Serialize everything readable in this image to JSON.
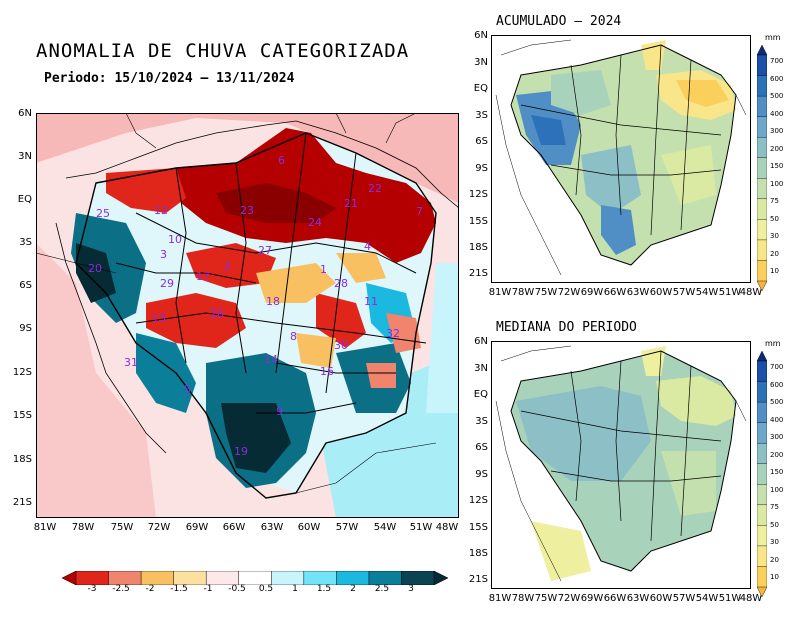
{
  "main_map": {
    "title": "ANOMALIA DE CHUVA CATEGORIZADA",
    "period": "Periodo: 15/10/2024 – 13/11/2024",
    "lat_labels": [
      "6N",
      "3N",
      "EQ",
      "3S",
      "6S",
      "9S",
      "12S",
      "15S",
      "18S",
      "21S"
    ],
    "lon_labels": [
      "81W",
      "78W",
      "75W",
      "72W",
      "69W",
      "66W",
      "63W",
      "60W",
      "57W",
      "54W",
      "51W",
      "48W"
    ],
    "basin_numbers": [
      "6",
      "23",
      "22",
      "21",
      "25",
      "24",
      "7",
      "12",
      "10",
      "4",
      "27",
      "20",
      "3",
      "17",
      "2",
      "1",
      "28",
      "11",
      "18",
      "29",
      "26",
      "8",
      "13",
      "31",
      "30",
      "32",
      "14",
      "16",
      "5",
      "9",
      "19"
    ],
    "colorbar": {
      "ticks": [
        "-3",
        "-2.5",
        "-2",
        "-1.5",
        "-1",
        "-0.5",
        "0.5",
        "1",
        "1.5",
        "2",
        "2.5",
        "3"
      ],
      "colors": [
        "#b50000",
        "#e0261a",
        "#f0846c",
        "#f8c060",
        "#fbe0a0",
        "#fde8ea",
        "#ffffff",
        "#c8f4fc",
        "#72e4f7",
        "#1bb8e0",
        "#0b7f9a",
        "#0a4452",
        "#062b34"
      ]
    }
  },
  "acumulado_map": {
    "title": "ACUMULADO – 2024",
    "lat_labels": [
      "6N",
      "3N",
      "EQ",
      "3S",
      "6S",
      "9S",
      "12S",
      "15S",
      "18S",
      "21S"
    ],
    "lon_labels": [
      "81W",
      "78W",
      "75W",
      "72W",
      "69W",
      "66W",
      "63W",
      "60W",
      "57W",
      "54W",
      "51W",
      "48W"
    ],
    "unit": "mm"
  },
  "mediana_map": {
    "title": "MEDIANA DO PERIODO",
    "lat_labels": [
      "6N",
      "3N",
      "EQ",
      "3S",
      "6S",
      "9S",
      "12S",
      "15S",
      "18S",
      "21S"
    ],
    "lon_labels": [
      "81W",
      "78W",
      "75W",
      "72W",
      "69W",
      "66W",
      "63W",
      "60W",
      "57W",
      "54W",
      "51W",
      "48W"
    ],
    "unit": "mm"
  },
  "vertical_colorbar": {
    "levels": [
      "700",
      "600",
      "500",
      "400",
      "300",
      "200",
      "150",
      "100",
      "75",
      "50",
      "30",
      "20",
      "10"
    ],
    "colors": [
      "#0a2a7a",
      "#1b4fa8",
      "#2e71bb",
      "#4f8fc6",
      "#6da8cc",
      "#8cbfc6",
      "#a9d2bb",
      "#c4e0ae",
      "#dbeaa2",
      "#eef0a0",
      "#f9e58a",
      "#fbcf5c",
      "#f6b43a"
    ]
  }
}
